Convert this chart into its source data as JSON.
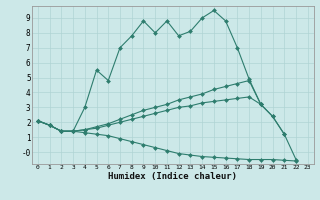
{
  "title": "",
  "xlabel": "Humidex (Indice chaleur)",
  "bg_color": "#cce8e8",
  "line_color": "#2e7d6e",
  "grid_color": "#b0d4d4",
  "spine_color": "#999999",
  "xlim": [
    -0.5,
    23.5
  ],
  "ylim": [
    -0.8,
    9.8
  ],
  "xticks": [
    0,
    1,
    2,
    3,
    4,
    5,
    6,
    7,
    8,
    9,
    10,
    11,
    12,
    13,
    14,
    15,
    16,
    17,
    18,
    19,
    20,
    21,
    22,
    23
  ],
  "yticks": [
    0,
    1,
    2,
    3,
    4,
    5,
    6,
    7,
    8,
    9
  ],
  "ytick_labels": [
    "-0",
    "1",
    "2",
    "3",
    "4",
    "5",
    "6",
    "7",
    "8",
    "9"
  ],
  "series": [
    [
      2.1,
      1.8,
      1.4,
      1.4,
      3.0,
      5.5,
      4.8,
      7.0,
      7.8,
      8.8,
      8.0,
      8.8,
      7.8,
      8.1,
      9.0,
      9.5,
      8.8,
      7.0,
      4.9,
      3.2,
      2.4,
      1.2,
      -0.5,
      null
    ],
    [
      2.1,
      1.8,
      1.4,
      1.4,
      1.5,
      1.7,
      1.9,
      2.2,
      2.5,
      2.8,
      3.0,
      3.2,
      3.5,
      3.7,
      3.9,
      4.2,
      4.4,
      4.6,
      4.8,
      3.2,
      null,
      null,
      null,
      null
    ],
    [
      2.1,
      1.8,
      1.4,
      1.4,
      1.5,
      1.6,
      1.8,
      2.0,
      2.2,
      2.4,
      2.6,
      2.8,
      3.0,
      3.1,
      3.3,
      3.4,
      3.5,
      3.6,
      3.7,
      3.2,
      2.4,
      1.2,
      null,
      null
    ],
    [
      2.1,
      1.8,
      1.4,
      1.4,
      1.3,
      1.2,
      1.1,
      0.9,
      0.7,
      0.5,
      0.3,
      0.1,
      -0.1,
      -0.2,
      -0.3,
      -0.35,
      -0.4,
      -0.45,
      -0.5,
      -0.5,
      -0.5,
      -0.55,
      -0.6,
      null
    ]
  ]
}
